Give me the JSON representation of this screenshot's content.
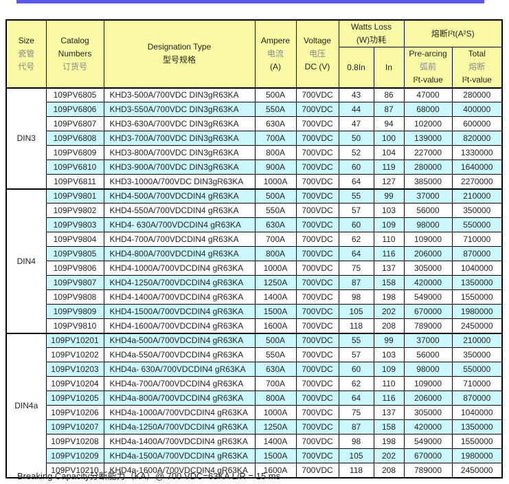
{
  "colors": {
    "top_line": "#5A5AE8",
    "header_bg": "#FAFAA5",
    "stripe_bg": "#CAF8FC",
    "border": "#000000"
  },
  "header": {
    "size": [
      "Size",
      "瓷管",
      "代号"
    ],
    "catalog": [
      "Catalog",
      "Numbers",
      "订货号"
    ],
    "designation": [
      "Designation Type",
      "型号规格"
    ],
    "ampere": [
      "Ampere",
      "电流",
      "(A)"
    ],
    "voltage": [
      "Voltage",
      "电压",
      "DC (V)"
    ],
    "watts_group": [
      "Watts Loss",
      "(W)功耗"
    ],
    "watts_sub": [
      "0.8In",
      "In"
    ],
    "i2t_group": "熔断I²t(A²S)",
    "i2t_sub": [
      [
        "Pre-arcing",
        "弧前",
        "I²t-value"
      ],
      [
        "Total",
        "熔断",
        "I²t-value"
      ]
    ]
  },
  "groups": [
    {
      "size": "DIN3",
      "rows": [
        [
          "109PV6805",
          "KHD3-500A/700VDC DIN3gR63KA",
          "500A",
          "700VDC",
          "43",
          "86",
          "47000",
          "280000"
        ],
        [
          "109PV6806",
          "KHD3-550A/700VDC DIN3gR63KA",
          "550A",
          "700VDC",
          "44",
          "87",
          "68000",
          "400000"
        ],
        [
          "109PV6807",
          "KHD3-630A/700VDC DIN3gR63KA",
          "630A",
          "700VDC",
          "47",
          "94",
          "102000",
          "600000"
        ],
        [
          "109PV6808",
          "KHD3-700A/700VDC DIN3gR63KA",
          "700A",
          "700VDC",
          "50",
          "100",
          "139000",
          "820000"
        ],
        [
          "109PV6809",
          "KHD3-800A/700VDC DIN3gR63KA",
          "800A",
          "700VDC",
          "52",
          "104",
          "227000",
          "1330000"
        ],
        [
          "109PV6810",
          "KHD3-900A/700VDC DIN3gR63KA",
          "900A",
          "700VDC",
          "60",
          "119",
          "280000",
          "1640000"
        ],
        [
          "109PV6811",
          "KHD3-1000A/700VDC DIN3gR63KA",
          "1000A",
          "700VDC",
          "64",
          "127",
          "385000",
          "2270000"
        ]
      ]
    },
    {
      "size": "DIN4",
      "rows": [
        [
          "109PV9801",
          "KHD4-500A/700VDCDIN4 gR63KA",
          "500A",
          "700VDC",
          "55",
          "99",
          "37000",
          "210000"
        ],
        [
          "109PV9802",
          "KHD4-550A/700VDCDIN4 gR63KA",
          "550A",
          "700VDC",
          "57",
          "103",
          "56000",
          "350000"
        ],
        [
          "109PV9803",
          "KHD4- 630A/700VDCDIN4 gR63KA",
          "630A",
          "700VDC",
          "60",
          "109",
          "98000",
          "550000"
        ],
        [
          "109PV9804",
          "KHD4-700A/700VDCDIN4 gR63KA",
          "700A",
          "700VDC",
          "62",
          "110",
          "109000",
          "710000"
        ],
        [
          "109PV9805",
          "KHD4-800A/700VDCDIN4 gR63KA",
          "800A",
          "700VDC",
          "64",
          "116",
          "206000",
          "870000"
        ],
        [
          "109PV9806",
          "KHD4-1000A/700VDCDIN4 gR63KA",
          "1000A",
          "700VDC",
          "75",
          "137",
          "305000",
          "1040000"
        ],
        [
          "109PV9807",
          "KHD4-1250A/700VDCDIN4 gR63KA",
          "1250A",
          "700VDC",
          "87",
          "158",
          "420000",
          "1350000"
        ],
        [
          "109PV9808",
          "KHD4-1400A/700VDCDIN4 gR63KA",
          "1400A",
          "700VDC",
          "98",
          "198",
          "549000",
          "1550000"
        ],
        [
          "109PV9809",
          "KHD4-1500A/700VDCDIN4 gR63KA",
          "1500A",
          "700VDC",
          "105",
          "202",
          "670000",
          "1980000"
        ],
        [
          "109PV9810",
          "KHD4-1600A/700VDCDIN4 gR63KA",
          "1600A",
          "700VDC",
          "118",
          "208",
          "789000",
          "2450000"
        ]
      ]
    },
    {
      "size": "DIN4a",
      "rows": [
        [
          "109PV10201",
          "KHD4a-500A/700VDCDIN4 gR63KA",
          "500A",
          "700VDC",
          "55",
          "99",
          "37000",
          "210000"
        ],
        [
          "109PV10202",
          "KHD4a-550A/700VDCDIN4 gR63KA",
          "550A",
          "700VDC",
          "57",
          "103",
          "56000",
          "350000"
        ],
        [
          "109PV10203",
          "KHD4a- 630A/700VDCDIN4 gR63KA",
          "630A",
          "700VDC",
          "60",
          "109",
          "98000",
          "550000"
        ],
        [
          "109PV10204",
          "KHD4a-700A/700VDCDIN4 gR63KA",
          "700A",
          "700VDC",
          "62",
          "110",
          "109000",
          "710000"
        ],
        [
          "109PV10205",
          "KHD4a-800A/700VDCDIN4 gR63KA",
          "800A",
          "700VDC",
          "64",
          "116",
          "206000",
          "870000"
        ],
        [
          "109PV10206",
          "KHD4a-1000A/700VDCDIN4 gR63KA",
          "1000A",
          "700VDC",
          "75",
          "137",
          "305000",
          "1040000"
        ],
        [
          "109PV10207",
          "KHD4a-1250A/700VDCDIN4 gR63KA",
          "1250A",
          "700VDC",
          "87",
          "158",
          "420000",
          "1350000"
        ],
        [
          "109PV10208",
          "KHD4a-1400A/700VDCDIN4 gR63KA",
          "1400A",
          "700VDC",
          "98",
          "198",
          "549000",
          "1550000"
        ],
        [
          "109PV10209",
          "KHD4a-1500A/700VDCDIN4 gR63KA",
          "1500A",
          "700VDC",
          "105",
          "202",
          "670000",
          "1980000"
        ],
        [
          "109PV10210",
          "KHD4a-1600A/700VDCDIN4 gR63KA",
          "1600A",
          "700VDC",
          "118",
          "208",
          "789000",
          "2450000"
        ]
      ]
    }
  ],
  "page": {
    "footer": "Breaking Capacity分断能力（KA）@ 700 VDC=63KA   L/R = 15 ms"
  }
}
